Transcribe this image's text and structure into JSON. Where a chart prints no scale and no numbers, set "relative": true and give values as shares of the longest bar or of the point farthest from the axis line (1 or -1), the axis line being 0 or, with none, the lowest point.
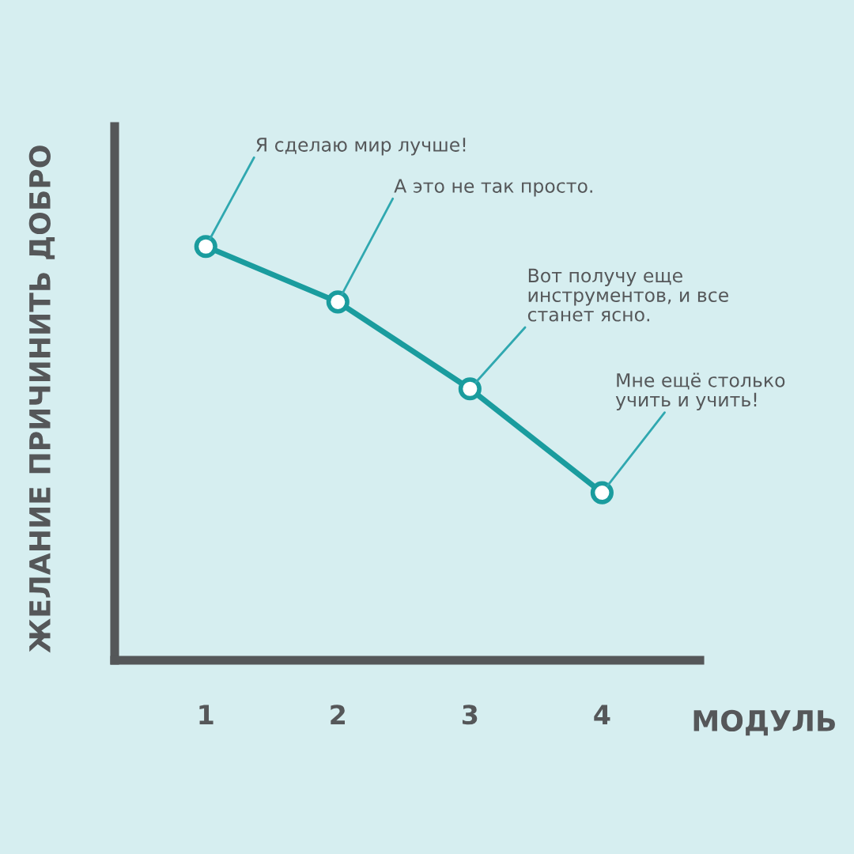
{
  "chart_data": {
    "type": "line",
    "relative": true,
    "categories": [
      "1",
      "2",
      "3",
      "4"
    ],
    "xlabel": "МОДУЛЬ",
    "ylabel": "ЖЕЛАНИЕ ПРИЧИНИТЬ ДОБРО",
    "series": [
      {
        "color": "#1a9c9e",
        "values": [
          1,
          0.866,
          0.656,
          0.405
        ]
      }
    ],
    "marker": "circle",
    "line_style": "solid",
    "grid": false,
    "legend": false,
    "annotations": [
      "Я сделаю мир лучше!",
      "А это не так просто.",
      "Вот получу еще\nинструментов, и все\nстанет ясно.",
      "Мне ещё столько\nучить и учить!"
    ]
  }
}
